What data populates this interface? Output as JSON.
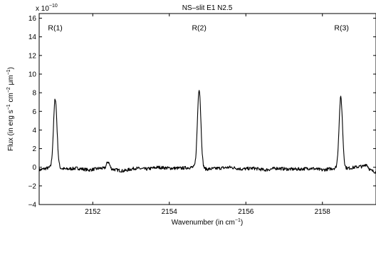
{
  "chart_data": {
    "type": "line",
    "title": "NS–slit E1 N2.5",
    "xlabel": "Wavenumber (in cm",
    "xlabel_sup": "−1",
    "xlabel_close": ")",
    "ylabel_parts": [
      "Flux (in erg s",
      "−1",
      " cm",
      "−2",
      " μm",
      "−1",
      ")"
    ],
    "y_exponent_base": "x 10",
    "y_exponent_power": "−10",
    "xlim": [
      2150.6,
      2159.4
    ],
    "ylim": [
      -4,
      16.5
    ],
    "xticks": [
      2152,
      2154,
      2156,
      2158
    ],
    "xtick_labels": [
      "2152",
      "2154",
      "2156",
      "2158"
    ],
    "yticks": [
      -4,
      -2,
      0,
      2,
      4,
      6,
      8,
      10,
      12,
      14,
      16
    ],
    "ytick_labels": [
      "−4",
      "−2",
      "0",
      "2",
      "4",
      "6",
      "8",
      "10",
      "12",
      "14",
      "16"
    ],
    "grid": false,
    "annotations": [
      {
        "text": "R(1)",
        "x": 2151.02,
        "y": 15.0
      },
      {
        "text": "R(2)",
        "x": 2154.78,
        "y": 15.0
      },
      {
        "text": "R(3)",
        "x": 2158.5,
        "y": 15.0
      }
    ],
    "baseline": [
      [
        2150.6,
        -0.3
      ],
      [
        2150.8,
        -0.1
      ],
      [
        2150.95,
        0.0
      ],
      [
        2151.3,
        -0.2
      ],
      [
        2151.6,
        -0.1
      ],
      [
        2151.9,
        -0.3
      ],
      [
        2152.2,
        -0.1
      ],
      [
        2152.5,
        -0.2
      ],
      [
        2152.8,
        -0.4
      ],
      [
        2153.1,
        -0.1
      ],
      [
        2153.4,
        -0.2
      ],
      [
        2153.7,
        0.0
      ],
      [
        2154.0,
        -0.1
      ],
      [
        2154.3,
        -0.1
      ],
      [
        2154.6,
        0.0
      ],
      [
        2155.0,
        -0.2
      ],
      [
        2155.3,
        -0.1
      ],
      [
        2155.6,
        0.0
      ],
      [
        2155.9,
        -0.2
      ],
      [
        2156.2,
        -0.1
      ],
      [
        2156.5,
        -0.3
      ],
      [
        2156.8,
        -0.1
      ],
      [
        2157.1,
        -0.2
      ],
      [
        2157.4,
        -0.2
      ],
      [
        2157.7,
        -0.1
      ],
      [
        2158.0,
        -0.3
      ],
      [
        2158.3,
        -0.1
      ],
      [
        2158.7,
        -0.1
      ],
      [
        2159.0,
        0.1
      ],
      [
        2159.2,
        -0.3
      ],
      [
        2159.4,
        -0.5
      ]
    ],
    "peaks": [
      {
        "center": 2151.02,
        "height": 7.4,
        "width": 0.045
      },
      {
        "center": 2152.4,
        "height": 0.75,
        "width": 0.04
      },
      {
        "center": 2154.78,
        "height": 8.5,
        "width": 0.045
      },
      {
        "center": 2158.48,
        "height": 7.6,
        "width": 0.045
      },
      {
        "center": 2159.15,
        "height": 0.5,
        "width": 0.05
      }
    ],
    "sample_step": 0.01,
    "line_color": "#000000"
  }
}
